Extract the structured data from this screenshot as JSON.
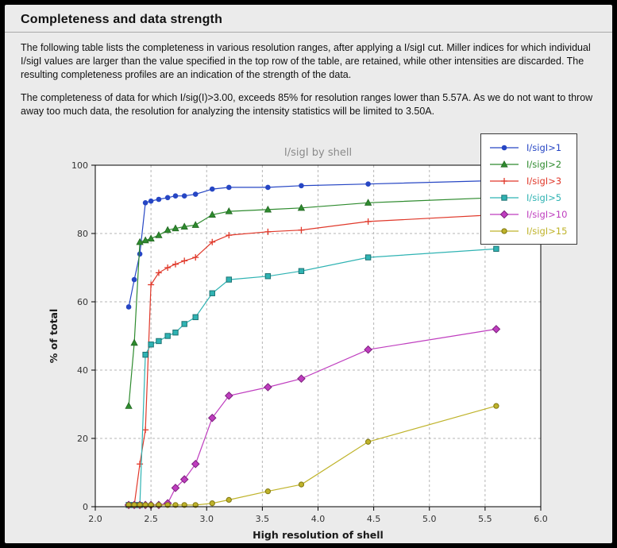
{
  "page": {
    "title": "Completeness and data strength",
    "paragraph1": "The following table lists the completeness in various resolution ranges, after applying a I/sigI cut. Miller indices for which individual I/sigI values are larger than the value specified in the top row of the table, are retained, while other intensities are discarded. The resulting completeness profiles are an indication of the strength of the data.",
    "paragraph2": "The completeness of data for which I/sig(I)>3.00, exceeds  85% for resolution ranges lower than 5.57A. As we do not want to throw away too much data, the resolution for analyzing the intensity statistics will be limited to 3.50A."
  },
  "chart_data": {
    "type": "line",
    "title": "I/sigI by shell",
    "xlabel": "High resolution of shell",
    "ylabel": "% of total",
    "xlim": [
      2.0,
      6.0
    ],
    "ylim": [
      0,
      100
    ],
    "xticks": [
      2.0,
      2.5,
      3.0,
      3.5,
      4.0,
      4.5,
      5.0,
      5.5,
      6.0
    ],
    "xtick_labels": [
      "2.0",
      "2.5",
      "3.0",
      "3.5",
      "4.0",
      "4.5",
      "5.0",
      "5.5",
      "6.0"
    ],
    "yticks": [
      0,
      20,
      40,
      60,
      80,
      100
    ],
    "ytick_labels": [
      "0",
      "20",
      "40",
      "60",
      "80",
      "100"
    ],
    "grid": "dashed",
    "legend_position": "upper-right-outside",
    "colors": {
      "grid": "#b5b5b5",
      "axes_box": "#000000",
      "plot_bg": "#ffffff",
      "figure_bg": "#ebebeb",
      "title_text": "#8a8a8a"
    },
    "x": [
      2.3,
      2.35,
      2.4,
      2.45,
      2.5,
      2.57,
      2.65,
      2.72,
      2.8,
      2.9,
      3.05,
      3.2,
      3.55,
      3.85,
      4.45,
      5.6
    ],
    "series": [
      {
        "name": "I/sigI>1",
        "color": "#2646c4",
        "edge": "#1d3899",
        "marker": "circle",
        "values": [
          58.5,
          66.5,
          74,
          89,
          89.5,
          90,
          90.5,
          91,
          91,
          91.5,
          93,
          93.5,
          93.5,
          94,
          94.5,
          95.5
        ]
      },
      {
        "name": "I/sigI>2",
        "color": "#2e8b2e",
        "edge": "#226722",
        "marker": "triangle",
        "values": [
          29.5,
          48,
          77.5,
          78,
          78.5,
          79.5,
          81,
          81.5,
          82,
          82.5,
          85.5,
          86.5,
          87,
          87.5,
          89,
          90.5
        ]
      },
      {
        "name": "I/sigI>3",
        "color": "#e0382a",
        "edge": "#e0382a",
        "marker": "plus",
        "values": [
          0.5,
          0.5,
          12.5,
          22.5,
          65,
          68.5,
          70,
          71,
          72,
          73,
          77.5,
          79.5,
          80.5,
          81,
          83.5,
          85.5
        ]
      },
      {
        "name": "I/sigI>5",
        "color": "#2fb3b3",
        "edge": "#1d7272",
        "marker": "square",
        "values": [
          0.5,
          0.5,
          0.5,
          44.5,
          47.5,
          48.5,
          50,
          51,
          53.5,
          55.5,
          62.5,
          66.5,
          67.5,
          69,
          73,
          75.5
        ]
      },
      {
        "name": "I/sigI>10",
        "color": "#bf3dbf",
        "edge": "#7c217c",
        "marker": "diamond",
        "values": [
          0.5,
          0.5,
          0.5,
          0.5,
          0.5,
          0.5,
          1,
          5.5,
          8,
          12.5,
          26,
          32.5,
          35,
          37.5,
          46,
          52
        ]
      },
      {
        "name": "I/sigI>15",
        "color": "#bfb32a",
        "edge": "#857c15",
        "marker": "circle-open",
        "values": [
          0.5,
          0.5,
          0.5,
          0.5,
          0.5,
          0.5,
          0.5,
          0.5,
          0.5,
          0.5,
          1,
          2,
          4.5,
          6.5,
          19,
          29.5
        ]
      }
    ]
  }
}
